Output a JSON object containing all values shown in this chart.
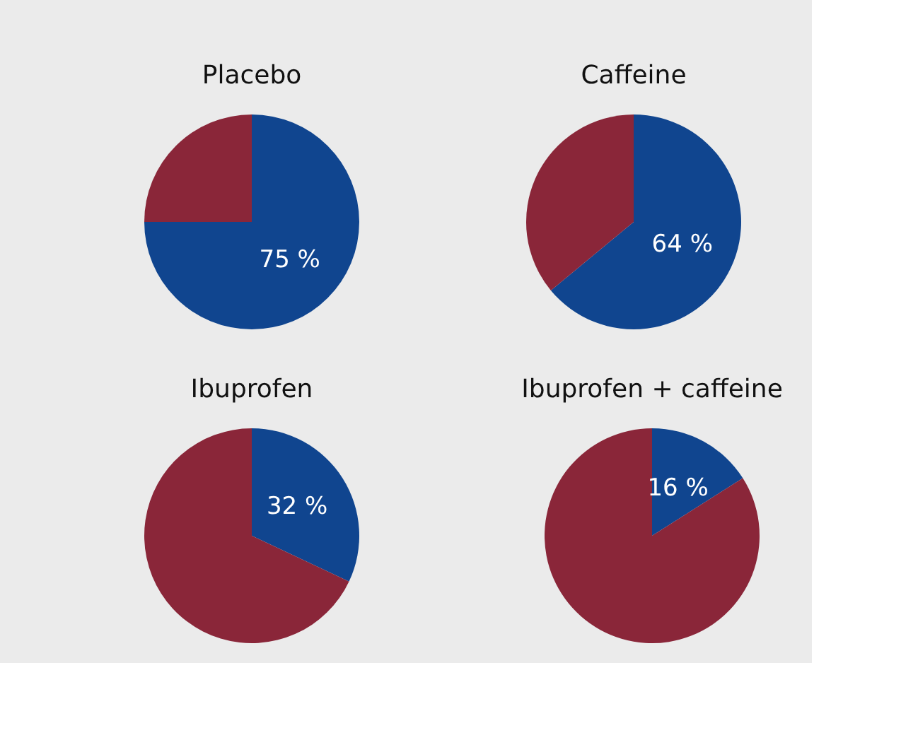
{
  "chart_data": [
    {
      "type": "pie",
      "title": "Placebo",
      "categories": [
        null,
        null
      ],
      "values": [
        75,
        25
      ],
      "colors": [
        "#10458f",
        "#8a2639"
      ],
      "value_labels": [
        "75 %",
        null
      ]
    },
    {
      "type": "pie",
      "title": "Caffeine",
      "categories": [
        null,
        null
      ],
      "values": [
        64,
        36
      ],
      "colors": [
        "#10458f",
        "#8a2639"
      ],
      "value_labels": [
        "64 %",
        null
      ]
    },
    {
      "type": "pie",
      "title": "Ibuprofen",
      "categories": [
        null,
        null
      ],
      "values": [
        32,
        68
      ],
      "colors": [
        "#10458f",
        "#8a2639"
      ],
      "value_labels": [
        "32 %",
        null
      ]
    },
    {
      "type": "pie",
      "title": "Ibuprofen + caffeine",
      "categories": [
        null,
        null
      ],
      "values": [
        16,
        84
      ],
      "colors": [
        "#10458f",
        "#8a2639"
      ],
      "value_labels": [
        "16 %",
        null
      ]
    }
  ]
}
